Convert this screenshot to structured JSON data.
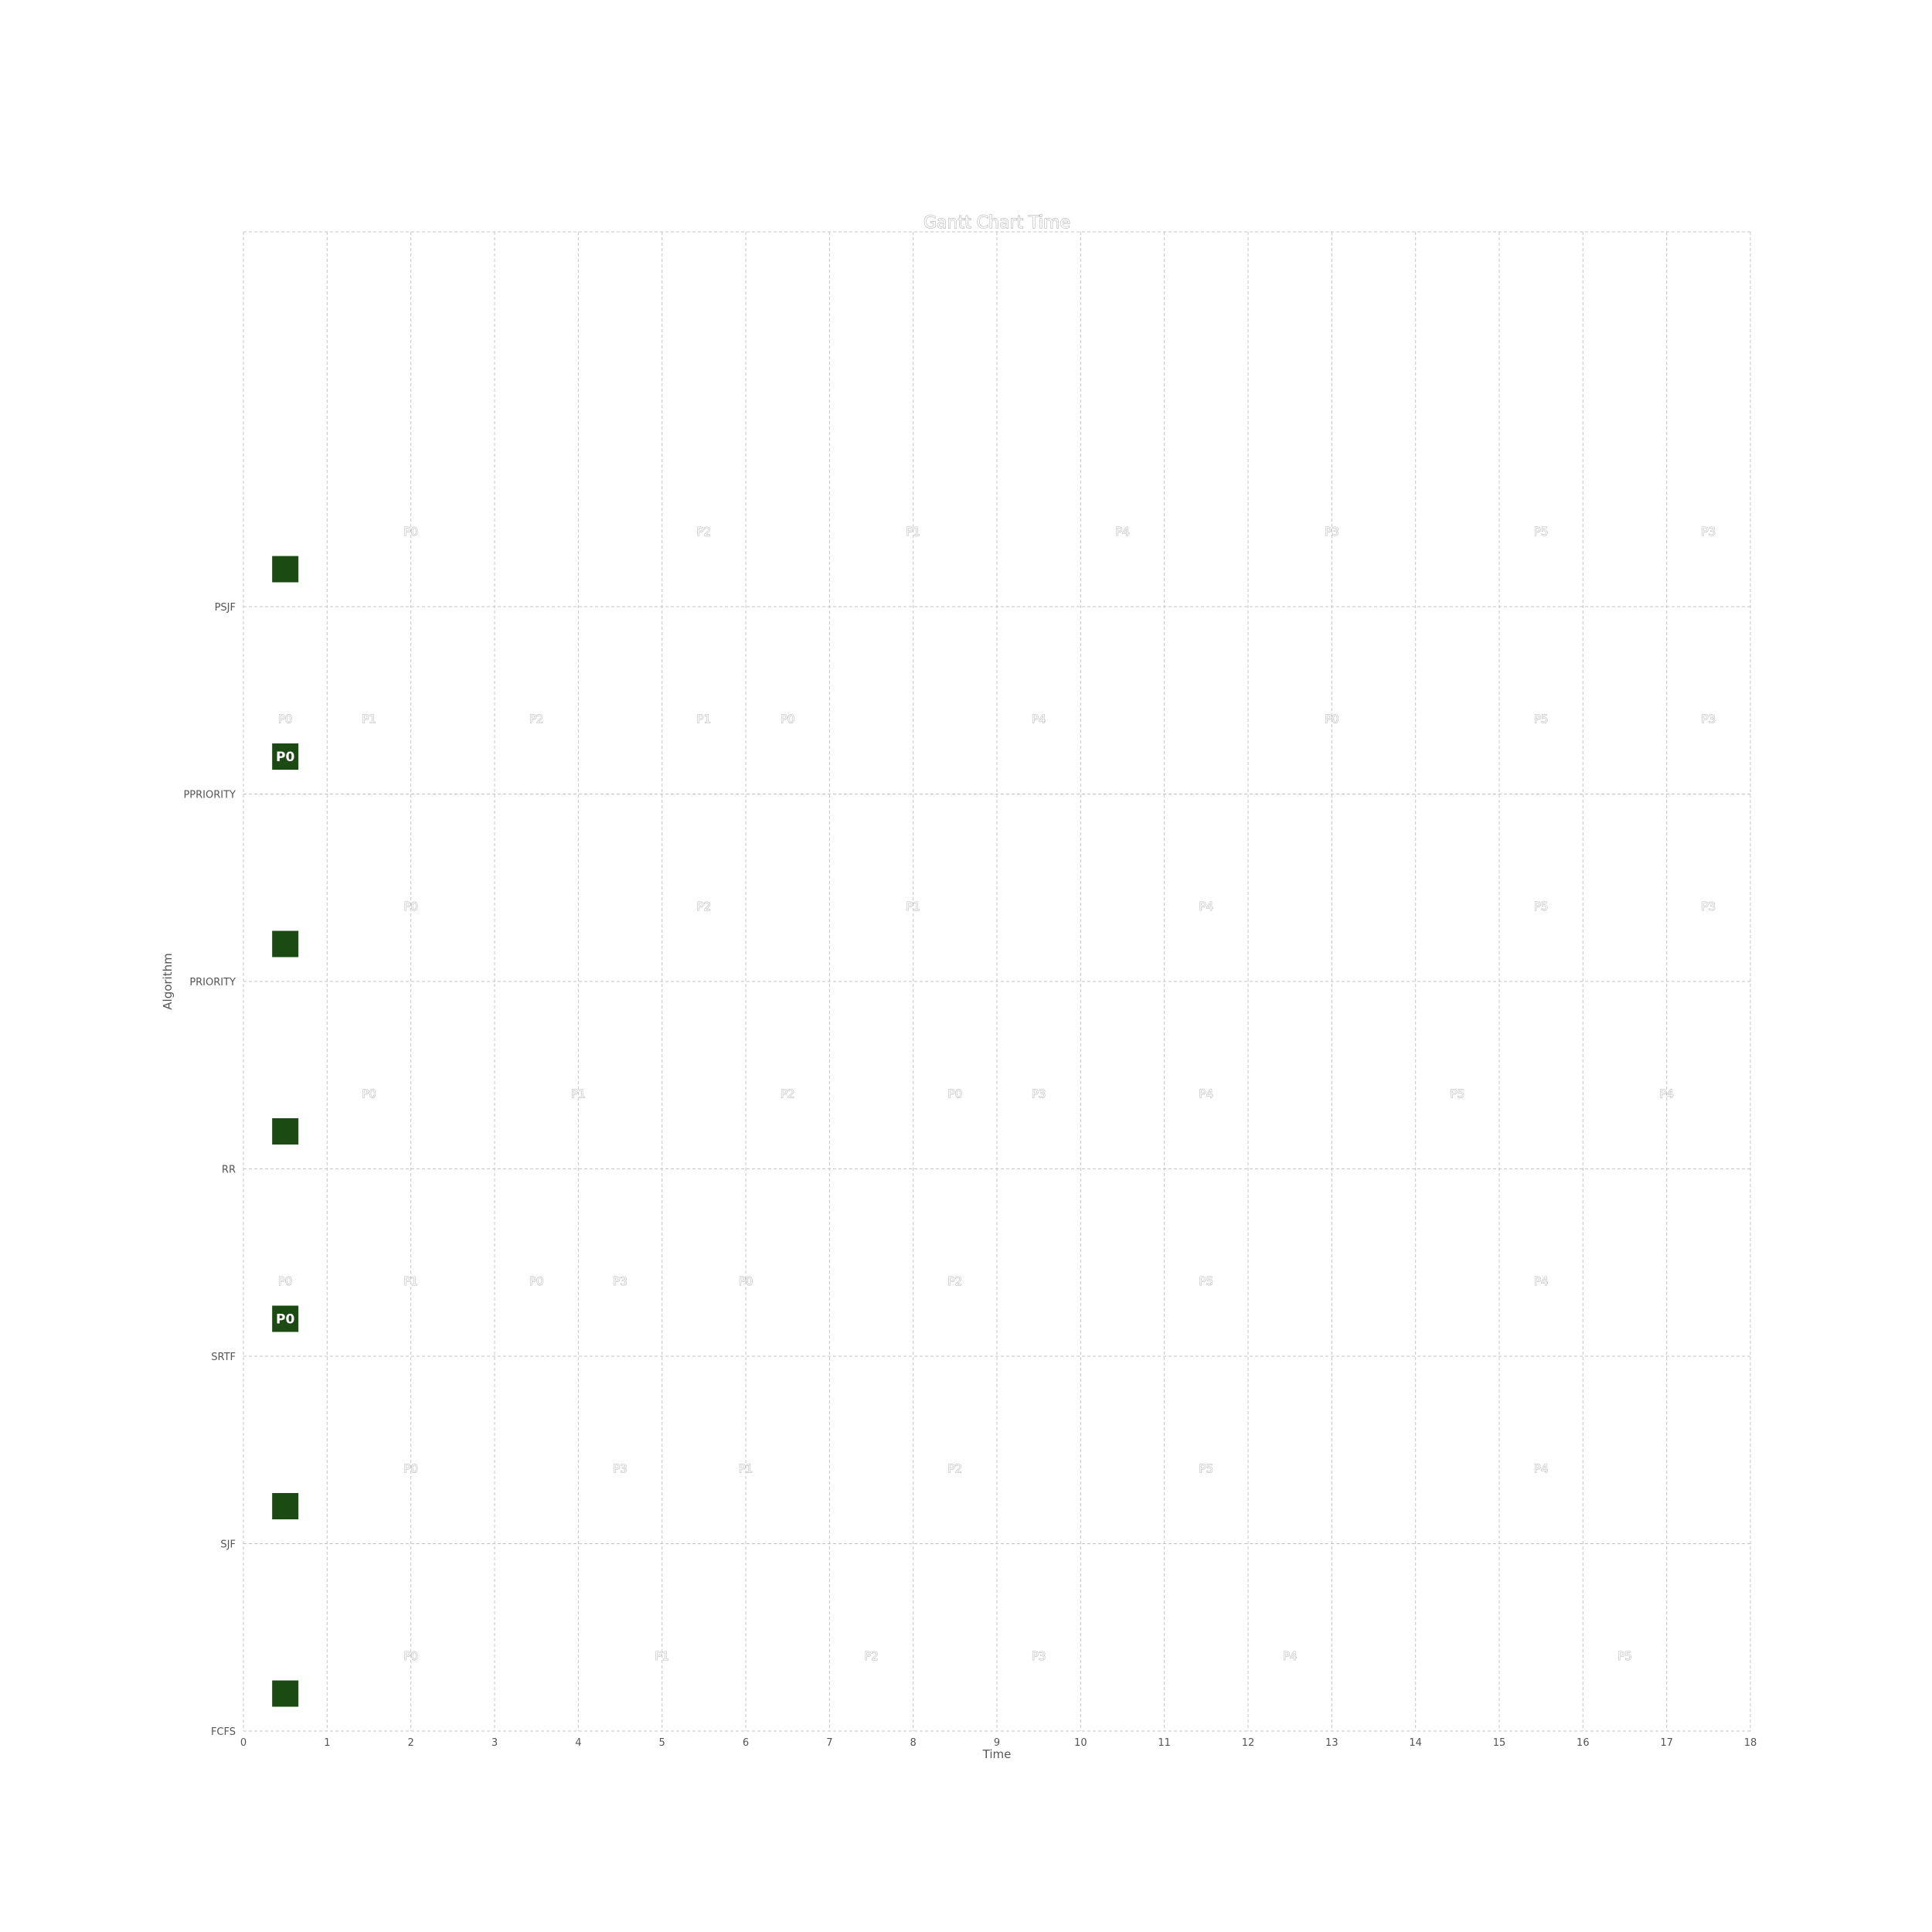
{
  "chart_data": {
    "type": "gantt",
    "title": "Gantt Chart Time",
    "xlabel": "Time",
    "ylabel": "Algorithm",
    "xlim": [
      0,
      18
    ],
    "x_ticks": [
      0,
      1,
      2,
      3,
      4,
      5,
      6,
      7,
      8,
      9,
      10,
      11,
      12,
      13,
      14,
      15,
      16,
      17,
      18
    ],
    "grid": true,
    "marker_color": "#1b4a12",
    "rows": [
      {
        "algorithm": "FCFS",
        "marker_label": "",
        "segments": [
          {
            "process": "P0",
            "start": 0,
            "end": 4
          },
          {
            "process": "P1",
            "start": 4,
            "end": 6
          },
          {
            "process": "P2",
            "start": 6,
            "end": 9
          },
          {
            "process": "P3",
            "start": 9,
            "end": 10
          },
          {
            "process": "P4",
            "start": 10,
            "end": 15
          },
          {
            "process": "P5",
            "start": 15,
            "end": 18
          }
        ]
      },
      {
        "algorithm": "SJF",
        "marker_label": "",
        "segments": [
          {
            "process": "P0",
            "start": 0,
            "end": 4
          },
          {
            "process": "P3",
            "start": 4,
            "end": 5
          },
          {
            "process": "P1",
            "start": 5,
            "end": 7
          },
          {
            "process": "P2",
            "start": 7,
            "end": 10
          },
          {
            "process": "P5",
            "start": 10,
            "end": 13
          },
          {
            "process": "P4",
            "start": 13,
            "end": 18
          }
        ]
      },
      {
        "algorithm": "SRTF",
        "marker_label": "P0",
        "segments": [
          {
            "process": "P0",
            "start": 0,
            "end": 1
          },
          {
            "process": "P1",
            "start": 1,
            "end": 3
          },
          {
            "process": "P0",
            "start": 3,
            "end": 4
          },
          {
            "process": "P3",
            "start": 4,
            "end": 5
          },
          {
            "process": "P0",
            "start": 5,
            "end": 7
          },
          {
            "process": "P2",
            "start": 7,
            "end": 10
          },
          {
            "process": "P5",
            "start": 10,
            "end": 13
          },
          {
            "process": "P4",
            "start": 13,
            "end": 18
          }
        ]
      },
      {
        "algorithm": "RR",
        "marker_label": "",
        "segments": [
          {
            "process": "P0",
            "start": 0,
            "end": 3
          },
          {
            "process": "P1",
            "start": 3,
            "end": 5
          },
          {
            "process": "P2",
            "start": 5,
            "end": 8
          },
          {
            "process": "P0",
            "start": 8,
            "end": 9
          },
          {
            "process": "P3",
            "start": 9,
            "end": 10
          },
          {
            "process": "P4",
            "start": 10,
            "end": 13
          },
          {
            "process": "P5",
            "start": 13,
            "end": 16
          },
          {
            "process": "P4",
            "start": 16,
            "end": 18
          }
        ]
      },
      {
        "algorithm": "PRIORITY",
        "marker_label": "",
        "segments": [
          {
            "process": "P0",
            "start": 0,
            "end": 4
          },
          {
            "process": "P2",
            "start": 4,
            "end": 7
          },
          {
            "process": "P1",
            "start": 7,
            "end": 9
          },
          {
            "process": "P4",
            "start": 9,
            "end": 14
          },
          {
            "process": "P5",
            "start": 14,
            "end": 17
          },
          {
            "process": "P3",
            "start": 17,
            "end": 18
          }
        ]
      },
      {
        "algorithm": "PPRIORITY",
        "marker_label": "P0",
        "segments": [
          {
            "process": "P0",
            "start": 0,
            "end": 1
          },
          {
            "process": "P1",
            "start": 1,
            "end": 2
          },
          {
            "process": "P2",
            "start": 2,
            "end": 5
          },
          {
            "process": "P1",
            "start": 5,
            "end": 6
          },
          {
            "process": "P0",
            "start": 6,
            "end": 7
          },
          {
            "process": "P4",
            "start": 7,
            "end": 12
          },
          {
            "process": "P0",
            "start": 12,
            "end": 14
          },
          {
            "process": "P5",
            "start": 14,
            "end": 17
          },
          {
            "process": "P3",
            "start": 17,
            "end": 18
          }
        ]
      },
      {
        "algorithm": "PSJF",
        "marker_label": "",
        "segments": [
          {
            "process": "P0",
            "start": 0,
            "end": 4
          },
          {
            "process": "P2",
            "start": 4,
            "end": 7
          },
          {
            "process": "P1",
            "start": 7,
            "end": 9
          },
          {
            "process": "P4",
            "start": 9,
            "end": 12
          },
          {
            "process": "P3",
            "start": 12,
            "end": 14
          },
          {
            "process": "P5",
            "start": 14,
            "end": 17
          },
          {
            "process": "P3",
            "start": 17,
            "end": 18
          }
        ]
      }
    ]
  }
}
